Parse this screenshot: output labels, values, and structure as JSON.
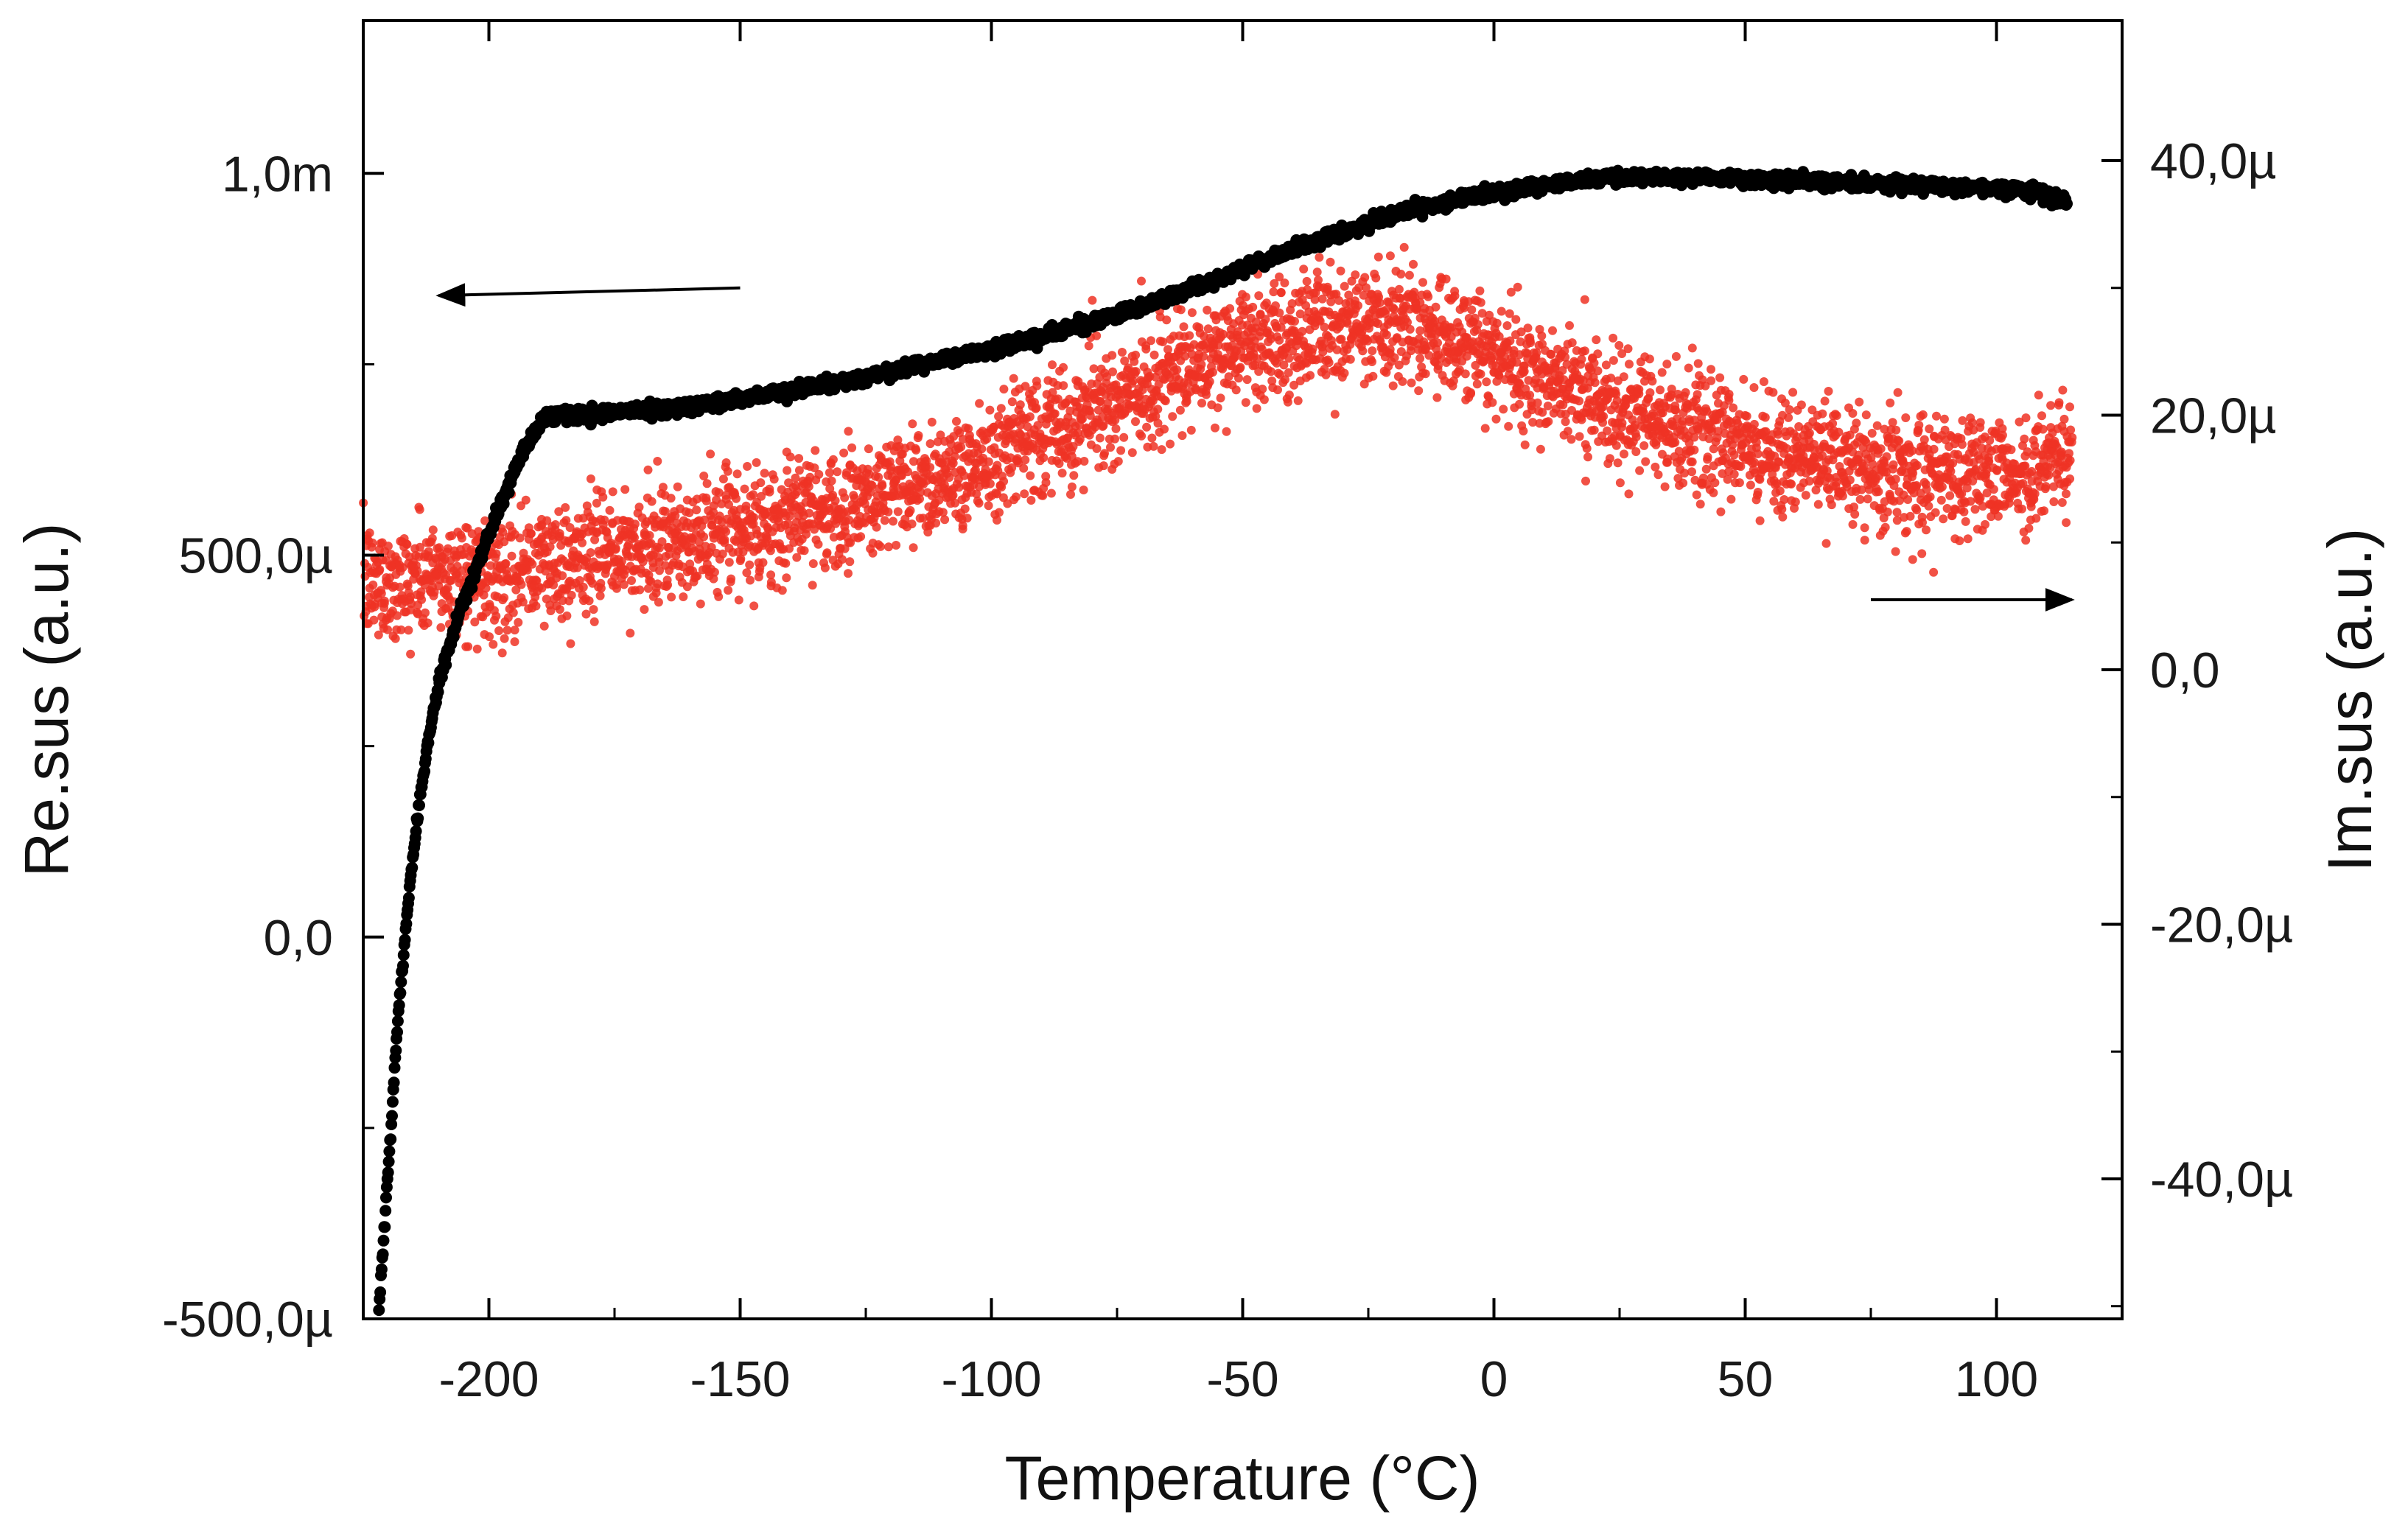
{
  "chart_data": {
    "type": "scatter",
    "title": "",
    "xlabel": "Temperature (°C)",
    "ylabel_left": "Re.sus (a.u.)",
    "ylabel_right": "Im.sus (a.u.)",
    "xlim": [
      -225,
      125
    ],
    "ylim_left": [
      -0.0005,
      0.0012
    ],
    "ylim_right": [
      -5.1e-05,
      5.1e-05
    ],
    "grid": false,
    "x_ticks": [
      {
        "value": -200,
        "label": "-200"
      },
      {
        "value": -150,
        "label": "-150"
      },
      {
        "value": -100,
        "label": "-100"
      },
      {
        "value": -50,
        "label": "-50"
      },
      {
        "value": 0,
        "label": "0"
      },
      {
        "value": 50,
        "label": "50"
      },
      {
        "value": 100,
        "label": "100"
      }
    ],
    "y_left_ticks": [
      {
        "value": -0.0005,
        "label": "-500,0µ"
      },
      {
        "value": 0,
        "label": "0,0"
      },
      {
        "value": 0.0005,
        "label": "500,0µ"
      },
      {
        "value": 0.001,
        "label": "1,0m"
      }
    ],
    "y_right_ticks": [
      {
        "value": -4e-05,
        "label": "-40,0µ"
      },
      {
        "value": -2e-05,
        "label": "-20,0µ"
      },
      {
        "value": 0,
        "label": "0,0"
      },
      {
        "value": 2e-05,
        "label": "20,0µ"
      },
      {
        "value": 4e-05,
        "label": "40,0µ"
      }
    ],
    "annotations": [
      {
        "type": "arrow",
        "meaning": "Re.sus series uses left axis",
        "direction": "left",
        "from": [
          -150,
          0.00085
        ],
        "to": [
          -210,
          0.00084
        ],
        "axis": "left"
      },
      {
        "type": "arrow",
        "meaning": "Im.sus series uses right axis",
        "direction": "right",
        "from": [
          75,
          5.5e-06
        ],
        "to": [
          115,
          5.5e-06
        ],
        "axis": "right"
      }
    ],
    "series": [
      {
        "name": "Re.sus",
        "axis": "left",
        "color": "#000000",
        "marker": "dense-dots",
        "x": [
          -222,
          -220,
          -218,
          -216,
          -214,
          -212,
          -210,
          -207,
          -204,
          -201,
          -198,
          -195,
          -192,
          -189,
          -186,
          -183,
          -180,
          -175,
          -170,
          -160,
          -150,
          -140,
          -130,
          -120,
          -110,
          -100,
          -90,
          -80,
          -70,
          -60,
          -50,
          -40,
          -30,
          -20,
          -10,
          0,
          10,
          20,
          30,
          40,
          50,
          60,
          70,
          80,
          90,
          100,
          105,
          110,
          114
        ],
        "values": [
          -0.0005,
          -0.0003,
          -0.0001,
          5e-05,
          0.00017,
          0.00026,
          0.00033,
          0.0004,
          0.00046,
          0.00051,
          0.00056,
          0.00061,
          0.00065,
          0.00068,
          0.000685,
          0.000685,
          0.000685,
          0.000687,
          0.00069,
          0.000695,
          0.000705,
          0.000715,
          0.000727,
          0.00074,
          0.000755,
          0.00077,
          0.000787,
          0.000805,
          0.000825,
          0.00085,
          0.000875,
          0.0009,
          0.000923,
          0.000945,
          0.000962,
          0.000975,
          0.000985,
          0.000993,
          0.000995,
          0.000995,
          0.000993,
          0.00099,
          0.000988,
          0.000986,
          0.000984,
          0.000981,
          0.000978,
          0.000972,
          0.000963
        ]
      },
      {
        "name": "Im.sus",
        "axis": "right",
        "color": "#ee3324",
        "marker": "noisy-dots",
        "x": [
          -225,
          -215,
          -205,
          -195,
          -185,
          -175,
          -165,
          -155,
          -145,
          -135,
          -125,
          -115,
          -105,
          -95,
          -85,
          -75,
          -65,
          -55,
          -45,
          -35,
          -25,
          -15,
          -5,
          5,
          15,
          25,
          35,
          45,
          55,
          65,
          75,
          85,
          95,
          105,
          115
        ],
        "values": [
          6.8e-06,
          7.1e-06,
          7.4e-06,
          7.8e-06,
          8.5e-06,
          9.2e-06,
          9.6e-06,
          1.04e-05,
          1.15e-05,
          1.25e-05,
          1.35e-05,
          1.47e-05,
          1.6e-05,
          1.75e-05,
          1.92e-05,
          2.1e-05,
          2.28e-05,
          2.45e-05,
          2.58e-05,
          2.67e-05,
          2.7e-05,
          2.68e-05,
          2.57e-05,
          2.4e-05,
          2.22e-05,
          2.05e-05,
          1.92e-05,
          1.82e-05,
          1.72e-05,
          1.65e-05,
          1.6e-05,
          1.55e-05,
          1.52e-05,
          1.54e-05,
          1.75e-05
        ],
        "noise_amplitude": 3.5e-06
      }
    ]
  }
}
